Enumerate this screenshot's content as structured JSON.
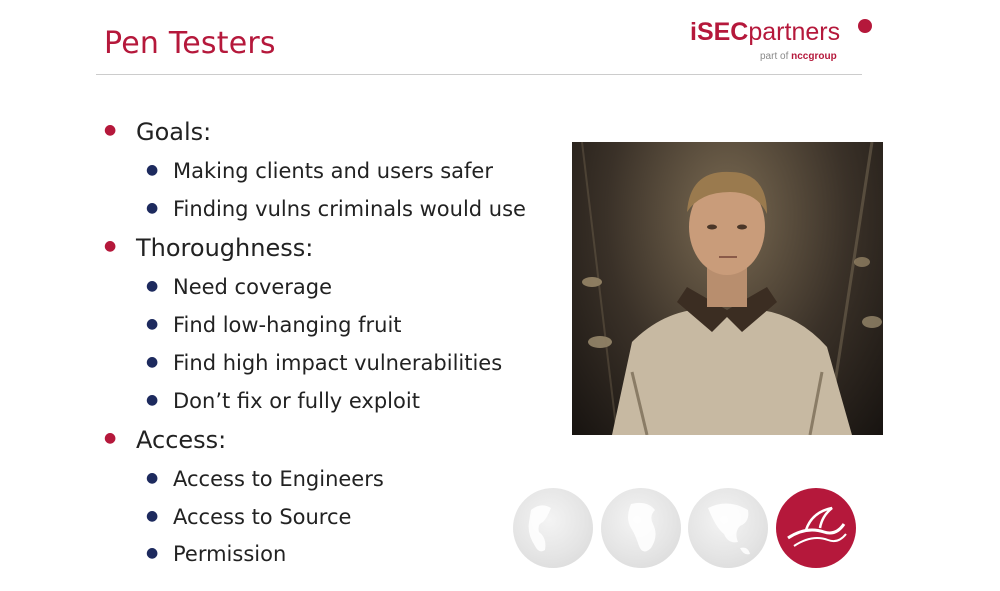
{
  "slide": {
    "title": "Pen Testers",
    "logo": {
      "text_bold": "iSEC",
      "text_regular": "partners",
      "sub_prefix": "part of ",
      "sub_brand": "nccgroup"
    },
    "bullets": [
      {
        "level": 1,
        "text": "Goals:"
      },
      {
        "level": 2,
        "text": "Making clients and users safer"
      },
      {
        "level": 2,
        "text": "Finding vulns criminals would use"
      },
      {
        "level": 1,
        "text": "Thoroughness:"
      },
      {
        "level": 2,
        "text": "Need coverage"
      },
      {
        "level": 2,
        "text": "Find low-hanging fruit"
      },
      {
        "level": 2,
        "text": "Find high impact vulnerabilities"
      },
      {
        "level": 2,
        "text": "Don’t fix or fully exploit"
      },
      {
        "level": 1,
        "text": "Access:"
      },
      {
        "level": 2,
        "text": "Access to Engineers"
      },
      {
        "level": 2,
        "text": "Access to Source"
      },
      {
        "level": 2,
        "text": "Permission"
      }
    ],
    "photo_icon": "man-in-jacket-photo",
    "globe_icon": "globe-icon",
    "brand_icon": "ncc-flourish-icon",
    "colors": {
      "accent": "#b5183b",
      "sub_bullet": "#1d2a5e",
      "text": "#222222"
    }
  }
}
